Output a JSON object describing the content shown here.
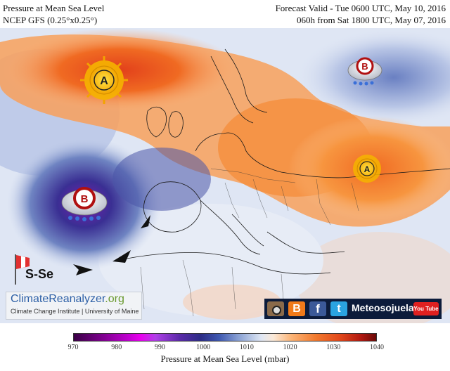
{
  "header": {
    "title": "Pressure at Mean Sea Level",
    "model": "NCEP GFS (0.25°x0.25°)",
    "forecast_valid": "Forecast Valid - Tue 0600 UTC, May 10, 2016",
    "lead_time": "060h from Sat 1800 UTC, May 07, 2016"
  },
  "map": {
    "pressure_centers": [
      {
        "type": "high",
        "letter": "A",
        "region": "North Atlantic"
      },
      {
        "type": "low",
        "letter": "B",
        "region": "Northern Russia"
      },
      {
        "type": "high",
        "letter": "A",
        "region": "Eastern Europe"
      },
      {
        "type": "low",
        "letter": "B",
        "region": "West of Portugal"
      }
    ],
    "wind_label": "S-Se",
    "logo_name": "ClimateReanalyzer",
    "logo_suffix": ".org",
    "logo_institute": "Climate Change Institute | University of Maine",
    "social_brand": "Meteosojuela",
    "youtube_label": "You Tube"
  },
  "colorbar": {
    "ticks": [
      "970",
      "980",
      "990",
      "1000",
      "1010",
      "1020",
      "1030",
      "1040"
    ],
    "label": "Pressure at Mean Sea Level (mbar)"
  }
}
